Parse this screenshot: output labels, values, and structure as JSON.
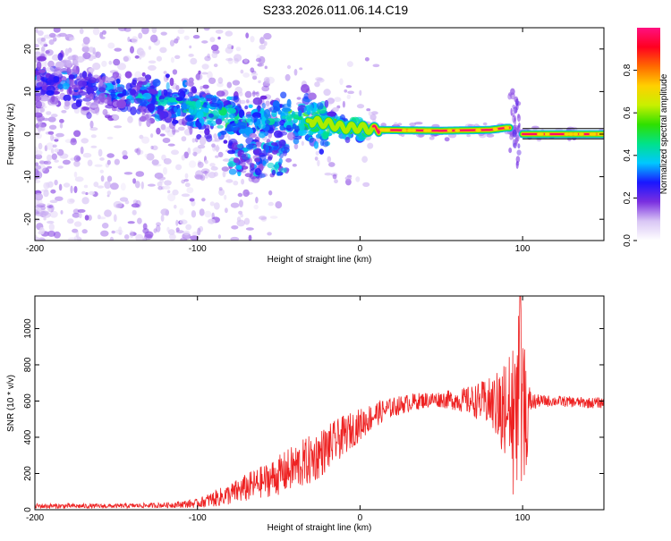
{
  "title": "S233.2026.011.06.14.C19",
  "chart_data": [
    {
      "type": "heatmap",
      "name": "spectrogram",
      "xlabel": "Height of straight line (km)",
      "ylabel": "Frequency (Hz)",
      "xlim": [
        -200,
        150
      ],
      "ylim": [
        -25,
        25
      ],
      "xticks": [
        -200,
        -100,
        0,
        100
      ],
      "yticks": [
        -20,
        -10,
        0,
        10,
        20
      ],
      "colorbar": {
        "label": "Normalized spectral amplitude",
        "range": [
          0,
          1
        ],
        "ticks": [
          0.0,
          0.2,
          0.4,
          0.6,
          0.8
        ],
        "tick_labels": [
          "0.0",
          "0.2",
          "0.4",
          "0.6",
          "0.8"
        ],
        "colors": [
          "#ffffff",
          "#d9c6f5",
          "#7a2fe0",
          "#1a16ff",
          "#00c8ff",
          "#00e28a",
          "#2ee000",
          "#c8f000",
          "#ffd000",
          "#ff6a00",
          "#ff0020",
          "#ff1080"
        ]
      },
      "ridge": {
        "x": [
          -200,
          -180,
          -160,
          -140,
          -120,
          -100,
          -90,
          -80,
          -70,
          -60,
          -50,
          -40,
          -30,
          -20,
          -10,
          0,
          10,
          50,
          80,
          90,
          95,
          100,
          110,
          120,
          150
        ],
        "y": [
          13,
          12,
          10,
          9,
          8,
          6,
          5,
          4,
          3,
          3,
          4,
          4,
          3,
          2.5,
          1.5,
          1.5,
          1,
          0.8,
          1,
          1.5,
          1.5,
          0,
          0,
          0,
          0
        ],
        "strength": [
          0.3,
          0.3,
          0.32,
          0.35,
          0.4,
          0.45,
          0.45,
          0.5,
          0.4,
          0.45,
          0.4,
          0.5,
          0.55,
          0.6,
          0.65,
          0.7,
          0.95,
          0.95,
          0.9,
          0.85,
          0.5,
          0.9,
          0.95,
          0.95,
          1.0
        ]
      }
    },
    {
      "type": "line",
      "name": "snr",
      "xlabel": "Height of straight line (km)",
      "ylabel": "SNR (10 * v/v)",
      "xlim": [
        -200,
        150
      ],
      "ylim": [
        0,
        1180
      ],
      "xticks": [
        -200,
        -100,
        0,
        100
      ],
      "yticks": [
        0,
        200,
        400,
        600,
        800,
        1000
      ],
      "color": "#ee2222",
      "series": [
        {
          "name": "SNR",
          "x": [
            -200,
            -150,
            -120,
            -100,
            -90,
            -80,
            -70,
            -60,
            -50,
            -40,
            -30,
            -20,
            -10,
            0,
            10,
            20,
            30,
            40,
            50,
            60,
            70,
            80,
            90,
            95,
            100,
            105,
            110,
            120,
            130,
            140,
            150
          ],
          "mean": [
            20,
            20,
            25,
            35,
            60,
            85,
            120,
            155,
            190,
            235,
            275,
            340,
            410,
            470,
            530,
            565,
            590,
            605,
            610,
            605,
            600,
            590,
            550,
            560,
            480,
            590,
            600,
            600,
            595,
            590,
            590
          ],
          "spread": [
            15,
            12,
            15,
            25,
            45,
            60,
            80,
            90,
            110,
            130,
            140,
            130,
            110,
            90,
            70,
            55,
            50,
            45,
            45,
            60,
            90,
            140,
            260,
            400,
            500,
            60,
            35,
            30,
            30,
            30,
            30
          ]
        }
      ]
    }
  ]
}
